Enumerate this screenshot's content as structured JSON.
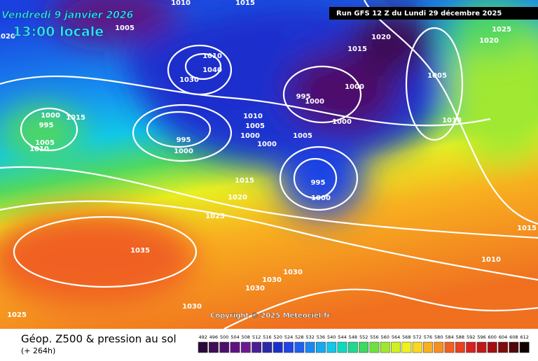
{
  "header": {
    "title": "Vendredi 9 janvier 2026",
    "subtitle": "13:00 locale",
    "run": "Run GFS 12 Z du Lundi 29 décembre 2025"
  },
  "map": {
    "copyright": "Copyright © 2025 Meteociel.fr",
    "isobar_labels": [
      "1010",
      "1015",
      "1020",
      "1005",
      "1010",
      "1040",
      "1030",
      "1015",
      "1020",
      "1025",
      "1020",
      "1005",
      "1000",
      "995",
      "1000",
      "1000",
      "1010",
      "1010",
      "1005",
      "1000",
      "1000",
      "1005",
      "995",
      "1000",
      "1000",
      "995",
      "1015",
      "1005",
      "1010",
      "995",
      "1000",
      "1015",
      "1020",
      "1025",
      "1035",
      "1030",
      "1030",
      "1030",
      "1030",
      "1025",
      "1010",
      "1015"
    ]
  },
  "legend": {
    "title": "Géop. Z500 & pression au sol",
    "lead_time": "(+ 264h)",
    "ticks": [
      492,
      496,
      500,
      504,
      508,
      512,
      516,
      520,
      524,
      528,
      532,
      536,
      540,
      544,
      548,
      552,
      556,
      560,
      564,
      568,
      572,
      576,
      580,
      584,
      588,
      592,
      596,
      600,
      604,
      608,
      612
    ],
    "colors": [
      "#2a0a3a",
      "#3d0d55",
      "#4d0f6a",
      "#5e1480",
      "#6b1a8f",
      "#4b1e96",
      "#2a2aa8",
      "#1c2fcc",
      "#1f45e6",
      "#2060f0",
      "#1a88f0",
      "#16a8f0",
      "#10c8e8",
      "#10d8c0",
      "#20d890",
      "#40d860",
      "#70e040",
      "#a0e830",
      "#d0f020",
      "#f0f020",
      "#f8d820",
      "#f8b020",
      "#f89020",
      "#f06020",
      "#e84020",
      "#d82020",
      "#c01818",
      "#a01010",
      "#800c0c",
      "#500808",
      "#100000"
    ]
  }
}
